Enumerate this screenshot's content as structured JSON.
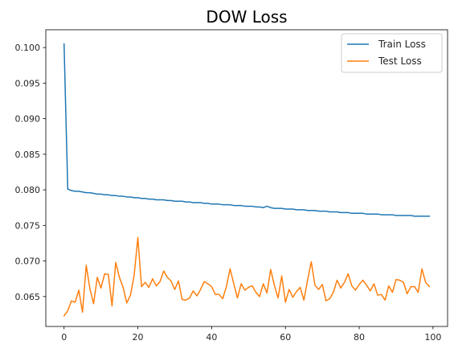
{
  "chart_data": {
    "type": "line",
    "title": "DOW Loss",
    "xlabel": "",
    "ylabel": "",
    "xlim": [
      -4.95,
      103.95
    ],
    "ylim": [
      0.0608,
      0.1025
    ],
    "x_ticks": [
      0,
      20,
      40,
      60,
      80,
      100
    ],
    "y_ticks": [
      0.065,
      0.07,
      0.075,
      0.08,
      0.085,
      0.09,
      0.095,
      0.1
    ],
    "x_tick_labels": [
      "0",
      "20",
      "40",
      "60",
      "80",
      "100"
    ],
    "y_tick_labels": [
      "0.065",
      "0.070",
      "0.075",
      "0.080",
      "0.085",
      "0.090",
      "0.095",
      "0.100"
    ],
    "grid": false,
    "legend_position": "top-right",
    "x": [
      0,
      1,
      2,
      3,
      4,
      5,
      6,
      7,
      8,
      9,
      10,
      11,
      12,
      13,
      14,
      15,
      16,
      17,
      18,
      19,
      20,
      21,
      22,
      23,
      24,
      25,
      26,
      27,
      28,
      29,
      30,
      31,
      32,
      33,
      34,
      35,
      36,
      37,
      38,
      39,
      40,
      41,
      42,
      43,
      44,
      45,
      46,
      47,
      48,
      49,
      50,
      51,
      52,
      53,
      54,
      55,
      56,
      57,
      58,
      59,
      60,
      61,
      62,
      63,
      64,
      65,
      66,
      67,
      68,
      69,
      70,
      71,
      72,
      73,
      74,
      75,
      76,
      77,
      78,
      79,
      80,
      81,
      82,
      83,
      84,
      85,
      86,
      87,
      88,
      89,
      90,
      91,
      92,
      93,
      94,
      95,
      96,
      97,
      98,
      99
    ],
    "series": [
      {
        "name": "Train Loss",
        "color": "#1f77b4",
        "values": [
          0.1005,
          0.0801,
          0.0799,
          0.0798,
          0.0798,
          0.0797,
          0.0796,
          0.0796,
          0.0795,
          0.0794,
          0.0794,
          0.0793,
          0.0793,
          0.0792,
          0.0792,
          0.0791,
          0.0791,
          0.079,
          0.079,
          0.0789,
          0.0789,
          0.0788,
          0.0788,
          0.0787,
          0.0787,
          0.0786,
          0.0786,
          0.0786,
          0.0785,
          0.0785,
          0.0784,
          0.0784,
          0.0784,
          0.0783,
          0.0783,
          0.0782,
          0.0782,
          0.0782,
          0.0781,
          0.0781,
          0.078,
          0.078,
          0.078,
          0.0779,
          0.0779,
          0.0779,
          0.0778,
          0.0778,
          0.0778,
          0.0777,
          0.0777,
          0.0777,
          0.0776,
          0.0776,
          0.0775,
          0.0777,
          0.0775,
          0.0774,
          0.0774,
          0.0774,
          0.0773,
          0.0773,
          0.0773,
          0.0772,
          0.0772,
          0.0772,
          0.0771,
          0.0771,
          0.0771,
          0.077,
          0.077,
          0.077,
          0.0769,
          0.0769,
          0.0769,
          0.0768,
          0.0768,
          0.0768,
          0.0767,
          0.0767,
          0.0767,
          0.0767,
          0.0766,
          0.0766,
          0.0766,
          0.0766,
          0.0765,
          0.0765,
          0.0765,
          0.0765,
          0.0764,
          0.0764,
          0.0764,
          0.0764,
          0.0764,
          0.0763,
          0.0763,
          0.0763,
          0.0763,
          0.0763
        ]
      },
      {
        "name": "Test Loss",
        "color": "#ff7f0e",
        "values": [
          0.0623,
          0.063,
          0.0644,
          0.0642,
          0.0659,
          0.0628,
          0.0694,
          0.0661,
          0.064,
          0.0677,
          0.0662,
          0.0682,
          0.0681,
          0.0637,
          0.0698,
          0.0677,
          0.0663,
          0.0641,
          0.0652,
          0.068,
          0.0733,
          0.0664,
          0.067,
          0.0663,
          0.0675,
          0.0665,
          0.0671,
          0.0686,
          0.0677,
          0.0672,
          0.066,
          0.0672,
          0.0646,
          0.0645,
          0.0648,
          0.0658,
          0.0651,
          0.066,
          0.0671,
          0.0668,
          0.0664,
          0.0653,
          0.0653,
          0.0647,
          0.0664,
          0.0689,
          0.0668,
          0.0648,
          0.0668,
          0.0659,
          0.0663,
          0.0665,
          0.0656,
          0.065,
          0.0668,
          0.0655,
          0.0688,
          0.0666,
          0.0648,
          0.0679,
          0.0642,
          0.066,
          0.0649,
          0.0657,
          0.0663,
          0.0645,
          0.0673,
          0.0699,
          0.0666,
          0.066,
          0.0667,
          0.0644,
          0.0647,
          0.0656,
          0.0673,
          0.0662,
          0.067,
          0.0682,
          0.0665,
          0.0659,
          0.0667,
          0.0673,
          0.0666,
          0.0658,
          0.0668,
          0.0652,
          0.0653,
          0.0645,
          0.0665,
          0.0656,
          0.0674,
          0.0673,
          0.067,
          0.0654,
          0.0664,
          0.0664,
          0.0656,
          0.0689,
          0.067,
          0.0664
        ]
      }
    ]
  }
}
